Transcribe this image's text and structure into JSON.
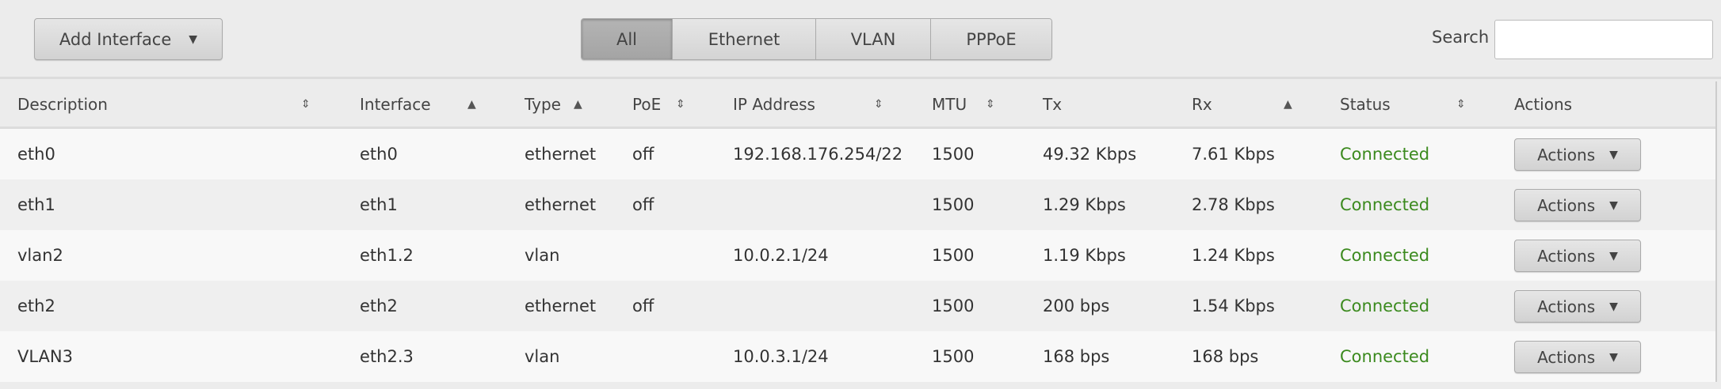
{
  "toolbar": {
    "add_interface": "Add Interface",
    "filters": [
      {
        "label": "All",
        "active": true
      },
      {
        "label": "Ethernet",
        "active": false
      },
      {
        "label": "VLAN",
        "active": false
      },
      {
        "label": "PPPoE",
        "active": false
      }
    ],
    "search_label": "Search",
    "search_value": ""
  },
  "table": {
    "columns": [
      {
        "label": "Description",
        "sort": "both"
      },
      {
        "label": "Interface",
        "sort": "asc"
      },
      {
        "label": "Type",
        "sort": "asc"
      },
      {
        "label": "PoE",
        "sort": "both"
      },
      {
        "label": "IP Address",
        "sort": "both"
      },
      {
        "label": "MTU",
        "sort": "both"
      },
      {
        "label": "Tx",
        "sort": "none"
      },
      {
        "label": "Rx",
        "sort": "asc"
      },
      {
        "label": "Status",
        "sort": "both"
      },
      {
        "label": "Actions",
        "sort": "none"
      }
    ],
    "rows": [
      {
        "description": "eth0",
        "interface": "eth0",
        "type": "ethernet",
        "poe": "off",
        "ip": "192.168.176.254/22",
        "mtu": "1500",
        "tx": "49.32 Kbps",
        "rx": "7.61 Kbps",
        "status": "Connected",
        "action": "Actions"
      },
      {
        "description": "eth1",
        "interface": "eth1",
        "type": "ethernet",
        "poe": "off",
        "ip": "",
        "mtu": "1500",
        "tx": "1.29 Kbps",
        "rx": "2.78 Kbps",
        "status": "Connected",
        "action": "Actions"
      },
      {
        "description": "vlan2",
        "interface": "eth1.2",
        "type": "vlan",
        "poe": "",
        "ip": "10.0.2.1/24",
        "mtu": "1500",
        "tx": "1.19 Kbps",
        "rx": "1.24 Kbps",
        "status": "Connected",
        "action": "Actions"
      },
      {
        "description": "eth2",
        "interface": "eth2",
        "type": "ethernet",
        "poe": "off",
        "ip": "",
        "mtu": "1500",
        "tx": "200 bps",
        "rx": "1.54 Kbps",
        "status": "Connected",
        "action": "Actions"
      },
      {
        "description": "VLAN3",
        "interface": "eth2.3",
        "type": "vlan",
        "poe": "",
        "ip": "10.0.3.1/24",
        "mtu": "1500",
        "tx": "168 bps",
        "rx": "168 bps",
        "status": "Connected",
        "action": "Actions"
      }
    ]
  },
  "colors": {
    "status_connected": "#3b8a1e"
  }
}
